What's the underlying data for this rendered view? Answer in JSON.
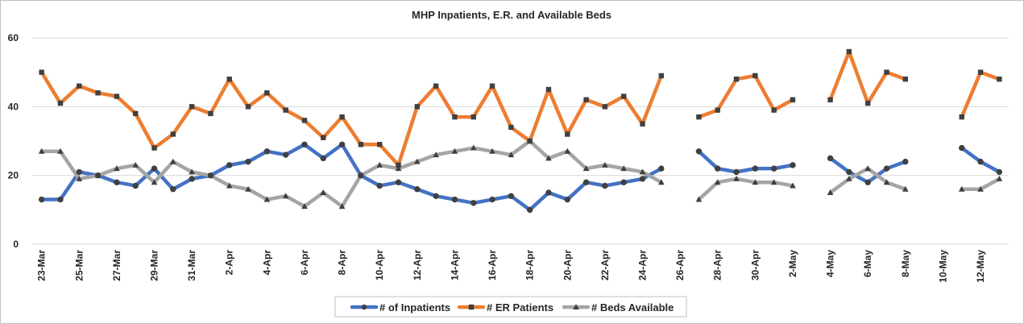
{
  "chart_data": {
    "type": "line",
    "title": "MHP Inpatients, E.R. and Available Beds",
    "xlabel": "",
    "ylabel": "",
    "ylim": [
      0,
      60
    ],
    "yticks": [
      0,
      20,
      40,
      60
    ],
    "grid": "horizontal",
    "legend_position": "bottom",
    "categories": [
      "23-Mar",
      "24-Mar",
      "25-Mar",
      "26-Mar",
      "27-Mar",
      "28-Mar",
      "29-Mar",
      "30-Mar",
      "31-Mar",
      "1-Apr",
      "2-Apr",
      "3-Apr",
      "4-Apr",
      "5-Apr",
      "6-Apr",
      "7-Apr",
      "8-Apr",
      "9-Apr",
      "10-Apr",
      "11-Apr",
      "12-Apr",
      "13-Apr",
      "14-Apr",
      "15-Apr",
      "16-Apr",
      "17-Apr",
      "18-Apr",
      "19-Apr",
      "20-Apr",
      "21-Apr",
      "22-Apr",
      "23-Apr",
      "24-Apr",
      "25-Apr",
      "26-Apr",
      "27-Apr",
      "28-Apr",
      "29-Apr",
      "30-Apr",
      "1-May",
      "2-May",
      "3-May",
      "4-May",
      "5-May",
      "6-May",
      "7-May",
      "8-May",
      "9-May",
      "10-May",
      "11-May",
      "12-May",
      "13-May"
    ],
    "tick_labels": [
      "23-Mar",
      "25-Mar",
      "27-Mar",
      "29-Mar",
      "31-Mar",
      "2-Apr",
      "4-Apr",
      "6-Apr",
      "8-Apr",
      "10-Apr",
      "12-Apr",
      "14-Apr",
      "16-Apr",
      "18-Apr",
      "20-Apr",
      "22-Apr",
      "24-Apr",
      "26-Apr",
      "28-Apr",
      "30-Apr",
      "2-May",
      "4-May",
      "6-May",
      "8-May",
      "10-May",
      "12-May"
    ],
    "series": [
      {
        "name": "# of Inpatients",
        "color": "#4472c4",
        "marker": "circle",
        "values": [
          13,
          13,
          21,
          20,
          18,
          17,
          22,
          16,
          19,
          20,
          23,
          24,
          27,
          26,
          29,
          25,
          29,
          20,
          17,
          18,
          16,
          14,
          13,
          12,
          13,
          14,
          10,
          15,
          13,
          18,
          17,
          18,
          19,
          22,
          null,
          27,
          22,
          21,
          22,
          22,
          23,
          null,
          25,
          21,
          18,
          22,
          24,
          null,
          null,
          28,
          24,
          21
        ]
      },
      {
        "name": "# ER Patients",
        "color": "#ed7d31",
        "marker": "square",
        "values": [
          50,
          41,
          46,
          44,
          43,
          38,
          28,
          32,
          40,
          38,
          48,
          40,
          44,
          39,
          36,
          31,
          37,
          29,
          29,
          23,
          40,
          46,
          37,
          37,
          46,
          34,
          30,
          45,
          32,
          42,
          40,
          43,
          35,
          49,
          null,
          37,
          39,
          48,
          49,
          39,
          42,
          null,
          42,
          56,
          41,
          50,
          48,
          null,
          null,
          37,
          50,
          48
        ]
      },
      {
        "name": "# Beds Available",
        "color": "#a5a5a5",
        "marker": "triangle",
        "values": [
          27,
          27,
          19,
          20,
          22,
          23,
          18,
          24,
          21,
          20,
          17,
          16,
          13,
          14,
          11,
          15,
          11,
          20,
          23,
          22,
          24,
          26,
          27,
          28,
          27,
          26,
          30,
          25,
          27,
          22,
          23,
          22,
          21,
          18,
          null,
          13,
          18,
          19,
          18,
          18,
          17,
          null,
          15,
          19,
          22,
          18,
          16,
          null,
          null,
          16,
          16,
          19
        ]
      }
    ]
  }
}
